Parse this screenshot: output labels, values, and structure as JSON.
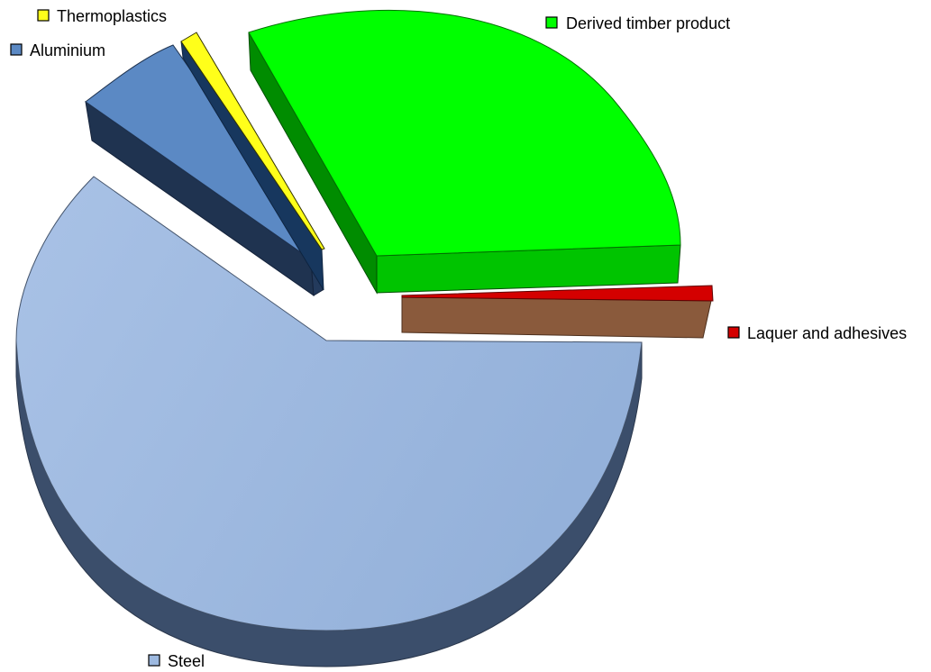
{
  "chart_data": {
    "type": "pie",
    "title": "",
    "three_d": true,
    "exploded": true,
    "slices": [
      {
        "name": "Steel",
        "value": 58.5,
        "color": "#9db9e0",
        "side_color": "#3b4e6b"
      },
      {
        "name": "Aluminium",
        "value": 6.5,
        "color": "#5b89c4",
        "side_color": "#1f3350"
      },
      {
        "name": "Thermoplastics",
        "value": 1.0,
        "color": "#ffff1a",
        "side_color": "#17375e"
      },
      {
        "name": "Derived timber product",
        "value": 33.0,
        "color": "#00ff00",
        "side_color": "#007f00"
      },
      {
        "name": "Laquer and adhesives",
        "value": 1.0,
        "color": "#d40000",
        "side_color": "#8a5a3c"
      }
    ],
    "legend": "labels beside slices"
  }
}
